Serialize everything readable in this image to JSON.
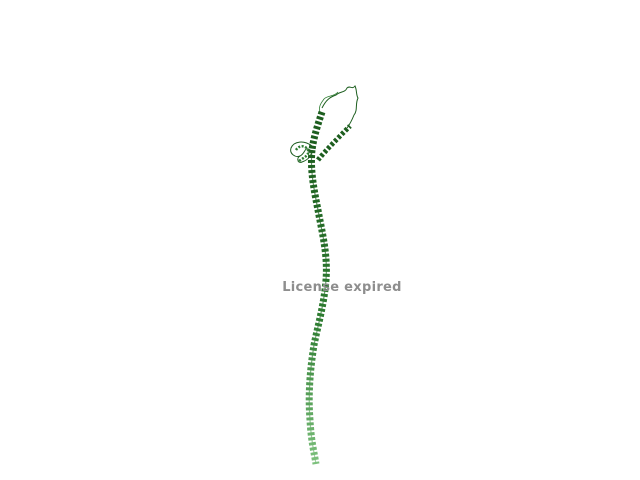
{
  "viewer": {
    "watermark_text": "License expired"
  },
  "colors": {
    "background": "#ffffff",
    "helix_dark": "#1d5e1f",
    "helix_mid": "#2f7d32",
    "helix_light": "#6ab36a",
    "watermark": "#8e8e8e"
  },
  "structure": {
    "kind": "protein-ribbon",
    "representation": "cartoon"
  }
}
